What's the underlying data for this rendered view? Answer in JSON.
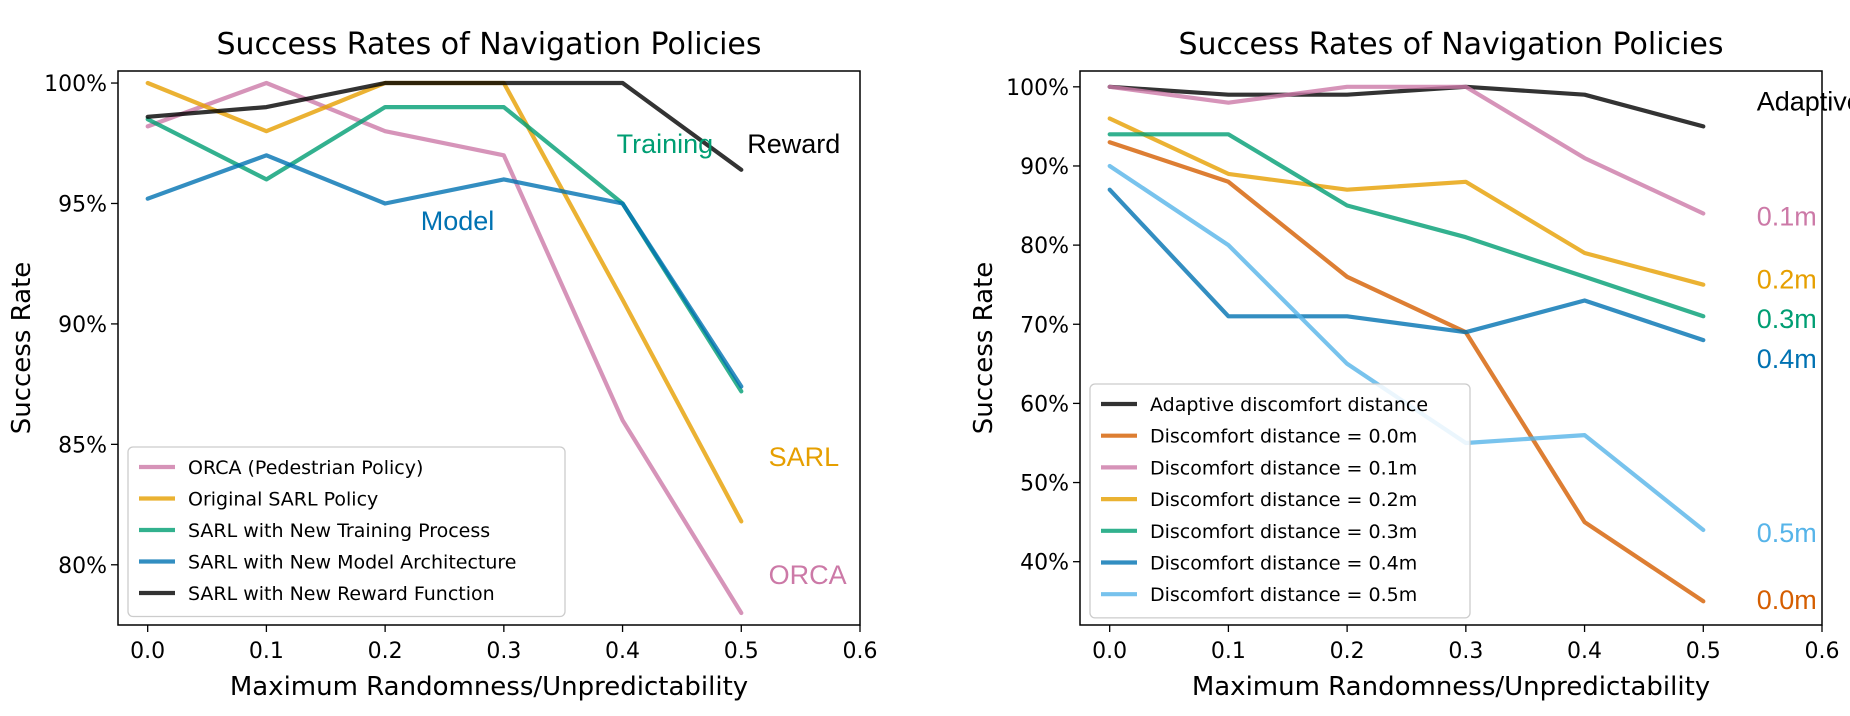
{
  "chart_data": [
    {
      "type": "line",
      "title": "Success Rates of Navigation Policies",
      "xlabel": "Maximum Randomness/Unpredictability",
      "ylabel": "Success Rate",
      "xlim": [
        -0.025,
        0.6
      ],
      "ylim": [
        77.5,
        100.5
      ],
      "x_ticks": [
        0.0,
        0.1,
        0.2,
        0.3,
        0.4,
        0.5,
        0.6
      ],
      "x_tick_labels": [
        "0.0",
        "0.1",
        "0.2",
        "0.3",
        "0.4",
        "0.5",
        "0.6"
      ],
      "y_ticks": [
        80,
        85,
        90,
        95,
        100
      ],
      "y_tick_labels": [
        "80%",
        "85%",
        "90%",
        "95%",
        "100%"
      ],
      "x": [
        0.0,
        0.1,
        0.2,
        0.3,
        0.4,
        0.5
      ],
      "series": [
        {
          "name": "ORCA (Pedestrian Policy)",
          "color": "#cc79a7",
          "values": [
            98.2,
            100,
            98,
            97,
            86,
            78
          ]
        },
        {
          "name": "Original SARL Policy",
          "color": "#e69f00",
          "values": [
            100,
            98,
            100,
            100,
            91,
            81.8
          ]
        },
        {
          "name": "SARL with New Training Process",
          "color": "#009e73",
          "values": [
            98.5,
            96,
            99,
            99,
            95,
            87.2
          ]
        },
        {
          "name": "SARL with New Model Architecture",
          "color": "#0072b2",
          "values": [
            95.2,
            97,
            95,
            96,
            95,
            87.4
          ]
        },
        {
          "name": "SARL with New Reward Function",
          "color": "#000000",
          "values": [
            98.6,
            99,
            100,
            100,
            100,
            96.4
          ]
        }
      ],
      "legend_position": "lower-left",
      "annotations": [
        {
          "text": "Training",
          "color": "#009e73",
          "x": 0.395,
          "y": 97.1
        },
        {
          "text": "Model",
          "color": "#0072b2",
          "x": 0.23,
          "y": 93.9
        },
        {
          "text": "Reward",
          "color": "#000000",
          "x": 0.505,
          "y": 97.1
        },
        {
          "text": "SARL",
          "color": "#e69f00",
          "x": 0.523,
          "y": 84.1
        },
        {
          "text": "ORCA",
          "color": "#cc79a7",
          "x": 0.523,
          "y": 79.2
        }
      ]
    },
    {
      "type": "line",
      "title": "Success Rates of Navigation Policies",
      "xlabel": "Maximum Randomness/Unpredictability",
      "ylabel": "Success Rate",
      "xlim": [
        -0.025,
        0.6
      ],
      "ylim": [
        32,
        102
      ],
      "x_ticks": [
        0.0,
        0.1,
        0.2,
        0.3,
        0.4,
        0.5,
        0.6
      ],
      "x_tick_labels": [
        "0.0",
        "0.1",
        "0.2",
        "0.3",
        "0.4",
        "0.5",
        "0.6"
      ],
      "y_ticks": [
        40,
        50,
        60,
        70,
        80,
        90,
        100
      ],
      "y_tick_labels": [
        "40%",
        "50%",
        "60%",
        "70%",
        "80%",
        "90%",
        "100%"
      ],
      "x": [
        0.0,
        0.1,
        0.2,
        0.3,
        0.4,
        0.5
      ],
      "series": [
        {
          "name": "Adaptive discomfort distance",
          "color": "#000000",
          "values": [
            100,
            99,
            99,
            100,
            99,
            95
          ]
        },
        {
          "name": "Discomfort distance = 0.0m",
          "color": "#d55e00",
          "values": [
            93,
            88,
            76,
            69,
            45,
            35
          ]
        },
        {
          "name": "Discomfort distance = 0.1m",
          "color": "#cc79a7",
          "values": [
            100,
            98,
            100,
            100,
            91,
            84
          ]
        },
        {
          "name": "Discomfort distance = 0.2m",
          "color": "#e69f00",
          "values": [
            96,
            89,
            87,
            88,
            79,
            75
          ]
        },
        {
          "name": "Discomfort distance = 0.3m",
          "color": "#009e73",
          "values": [
            94,
            94,
            85,
            81,
            76,
            71
          ]
        },
        {
          "name": "Discomfort distance = 0.4m",
          "color": "#0072b2",
          "values": [
            87,
            71,
            71,
            69,
            73,
            68
          ]
        },
        {
          "name": "Discomfort distance = 0.5m",
          "color": "#56b4e9",
          "values": [
            90,
            80,
            65,
            55,
            56,
            44
          ]
        }
      ],
      "legend_position": "lower-left",
      "annotations": [
        {
          "text": "Adaptive",
          "color": "#000000",
          "x": 0.545,
          "y": 97
        },
        {
          "text": "0.1m",
          "color": "#cc79a7",
          "x": 0.545,
          "y": 82.5
        },
        {
          "text": "0.2m",
          "color": "#e69f00",
          "x": 0.545,
          "y": 74.5
        },
        {
          "text": "0.3m",
          "color": "#009e73",
          "x": 0.545,
          "y": 69.5
        },
        {
          "text": "0.4m",
          "color": "#0072b2",
          "x": 0.545,
          "y": 64.5
        },
        {
          "text": "0.5m",
          "color": "#56b4e9",
          "x": 0.545,
          "y": 42.5
        },
        {
          "text": "0.0m",
          "color": "#d55e00",
          "x": 0.545,
          "y": 34
        }
      ]
    }
  ]
}
